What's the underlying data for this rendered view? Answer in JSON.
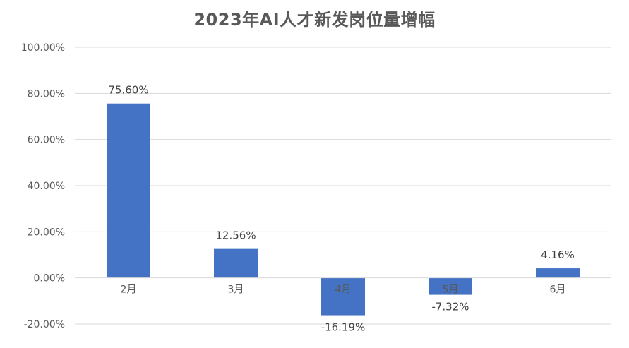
{
  "chart_data": {
    "type": "bar",
    "title": "2023年AI人才新发岗位量增幅",
    "xlabel": "",
    "ylabel": "",
    "categories": [
      "2月",
      "3月",
      "4月",
      "5月",
      "6月"
    ],
    "values": [
      75.6,
      12.56,
      -16.19,
      -7.32,
      4.16
    ],
    "data_labels": [
      "75.60%",
      "12.56%",
      "-16.19%",
      "-7.32%",
      "4.16%"
    ],
    "ylim": [
      -20,
      100
    ],
    "yticks": [
      100,
      80,
      60,
      40,
      20,
      0,
      -20
    ],
    "ytick_labels": [
      "100.00%",
      "80.00%",
      "60.00%",
      "40.00%",
      "20.00%",
      "0.00%",
      "-20.00%"
    ],
    "grid": true,
    "legend": "none",
    "bar_color": "#4472c4"
  }
}
